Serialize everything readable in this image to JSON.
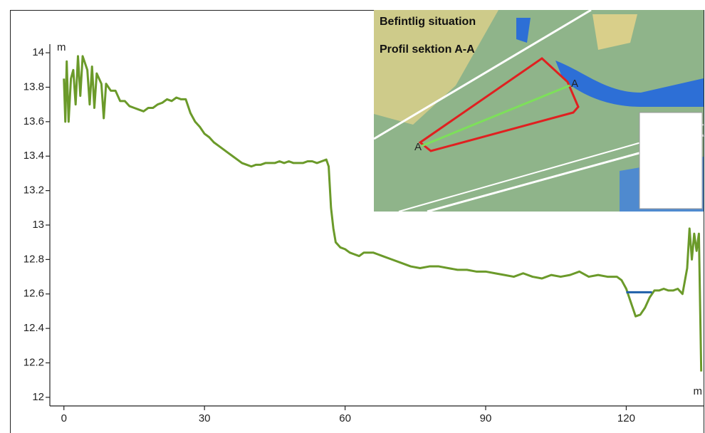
{
  "chart_data": {
    "type": "line",
    "y_unit": "m",
    "x_unit": "m",
    "xlim": [
      -3,
      136.5
    ],
    "xticks": [
      0,
      30,
      60,
      90,
      120
    ],
    "ylim": [
      11.95,
      14.05
    ],
    "yticks": [
      12,
      12.2,
      12.4,
      12.6,
      12.8,
      13,
      13.2,
      13.4,
      13.6,
      13.8,
      14
    ],
    "grid": false,
    "series": [
      {
        "color": "#6b9a2a",
        "x": [
          0,
          0.3,
          0.6,
          1,
          1.5,
          2,
          2.5,
          3,
          3.5,
          4,
          5,
          5.5,
          6,
          6.5,
          7,
          8,
          8.5,
          9,
          10,
          11,
          12,
          13,
          14,
          15,
          16,
          17,
          18,
          19,
          20,
          21,
          22,
          23,
          24,
          25,
          26,
          27,
          28,
          29,
          30,
          31,
          32,
          33,
          34,
          35,
          36,
          37,
          38,
          39,
          40,
          41,
          42,
          43,
          44,
          45,
          46,
          47,
          48,
          49,
          50,
          51,
          52,
          53,
          54,
          55,
          56,
          56.5,
          57,
          57.5,
          58,
          59,
          60,
          61,
          62,
          63,
          64,
          65,
          66,
          67,
          68,
          70,
          72,
          74,
          76,
          78,
          80,
          82,
          84,
          86,
          88,
          90,
          92,
          94,
          96,
          98,
          100,
          102,
          104,
          106,
          108,
          110,
          112,
          114,
          116,
          118,
          119,
          120,
          121,
          122,
          123,
          124,
          125,
          126,
          127,
          128,
          129,
          130,
          131,
          132,
          133,
          133.5,
          134,
          134.5,
          135,
          135.5,
          136
        ],
        "values": [
          13.85,
          13.6,
          13.95,
          13.6,
          13.85,
          13.9,
          13.7,
          13.98,
          13.75,
          13.98,
          13.9,
          13.7,
          13.92,
          13.68,
          13.88,
          13.82,
          13.62,
          13.82,
          13.78,
          13.78,
          13.72,
          13.72,
          13.69,
          13.68,
          13.67,
          13.66,
          13.68,
          13.68,
          13.7,
          13.71,
          13.73,
          13.72,
          13.74,
          13.73,
          13.73,
          13.65,
          13.6,
          13.57,
          13.53,
          13.51,
          13.48,
          13.46,
          13.44,
          13.42,
          13.4,
          13.38,
          13.36,
          13.35,
          13.34,
          13.35,
          13.35,
          13.36,
          13.36,
          13.36,
          13.37,
          13.36,
          13.37,
          13.36,
          13.36,
          13.36,
          13.37,
          13.37,
          13.36,
          13.37,
          13.38,
          13.34,
          13.1,
          12.98,
          12.9,
          12.87,
          12.86,
          12.84,
          12.83,
          12.82,
          12.84,
          12.84,
          12.84,
          12.83,
          12.82,
          12.8,
          12.78,
          12.76,
          12.75,
          12.76,
          12.76,
          12.75,
          12.74,
          12.74,
          12.73,
          12.73,
          12.72,
          12.71,
          12.7,
          12.72,
          12.7,
          12.69,
          12.71,
          12.7,
          12.71,
          12.73,
          12.7,
          12.71,
          12.7,
          12.7,
          12.68,
          12.63,
          12.55,
          12.47,
          12.48,
          12.52,
          12.58,
          12.62,
          12.62,
          12.63,
          12.62,
          12.62,
          12.63,
          12.6,
          12.75,
          12.98,
          12.8,
          12.95,
          12.85,
          12.95,
          12.15
        ]
      },
      {
        "color": "#1f5fa8",
        "x": [
          120,
          125.5
        ],
        "values": [
          12.61,
          12.61
        ]
      }
    ]
  },
  "inset": {
    "title": "Befintlig situation",
    "subtitle": "Profil sektion A-A",
    "labels": [
      "A",
      "A"
    ]
  }
}
